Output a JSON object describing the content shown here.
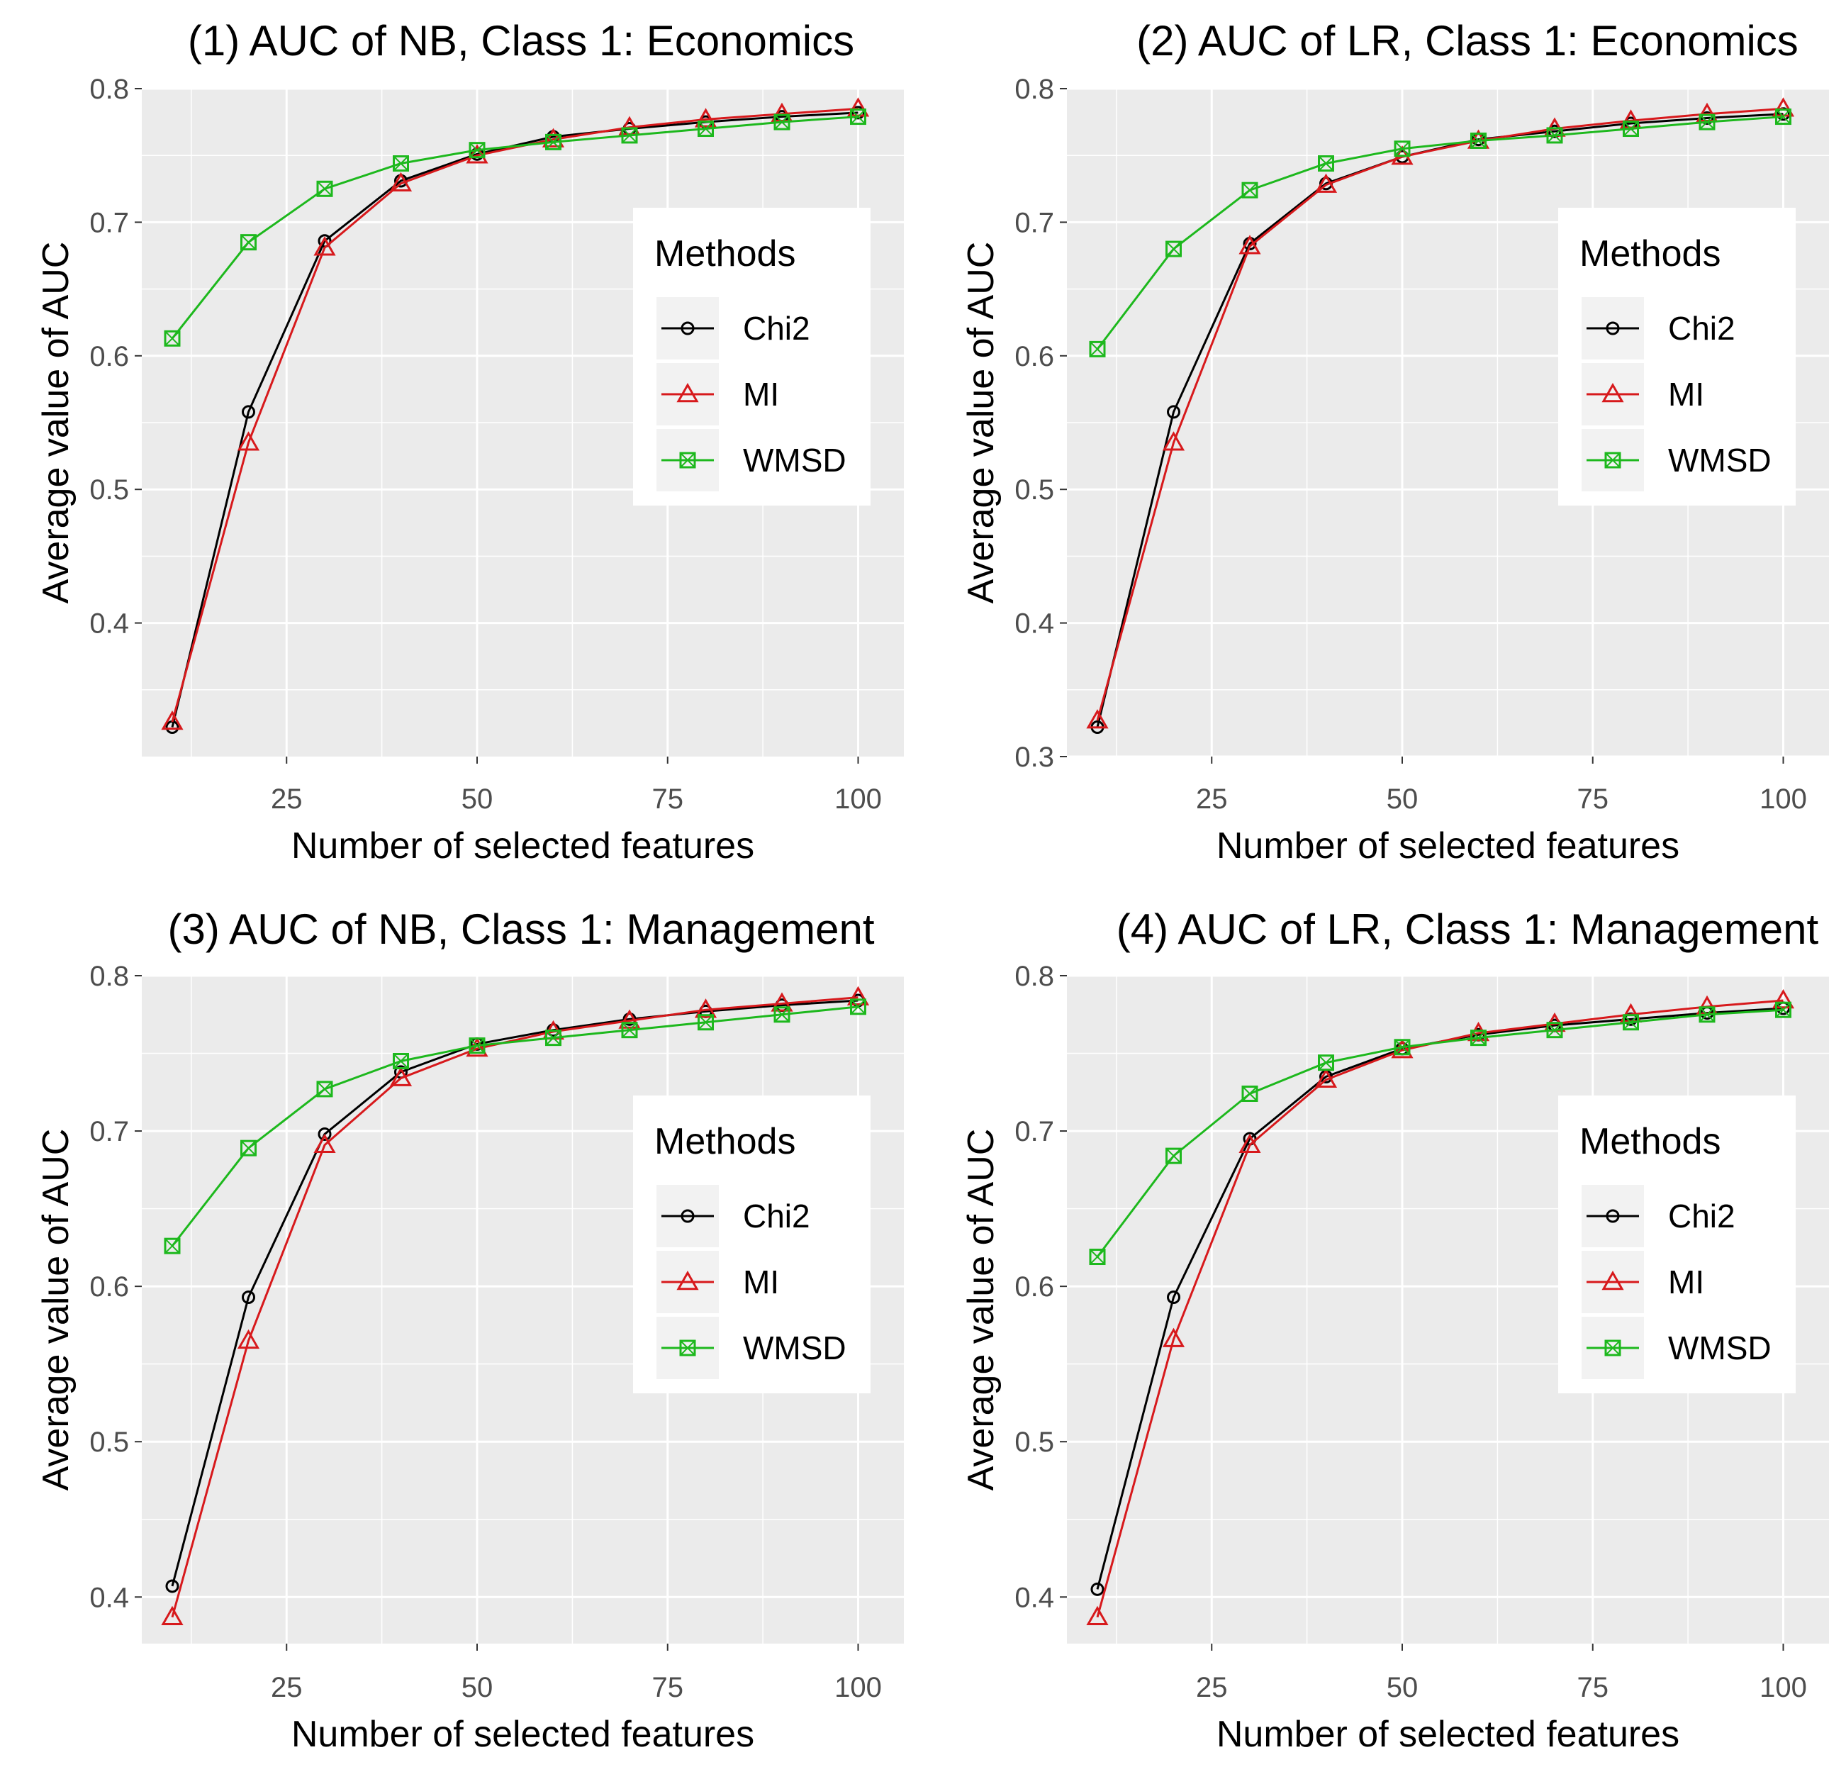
{
  "xlabel_shared": "Number of selected features",
  "ylabel_shared": "Average value of AUC",
  "legend_title": "Methods",
  "colors": {
    "Chi2": "#000000",
    "MI": "#d7191c",
    "WMSD": "#1db81d",
    "panel_bg": "#ebebeb",
    "grid": "#ffffff"
  },
  "chart_data": [
    {
      "type": "line",
      "title": "(1) AUC of NB, Class 1: Economics",
      "xlabel": "Number of selected features",
      "ylabel": "Average value of AUC",
      "x": [
        10,
        20,
        30,
        40,
        50,
        60,
        70,
        80,
        90,
        100
      ],
      "xlim": [
        6,
        106
      ],
      "ylim": [
        0.3,
        0.8
      ],
      "xticks": [
        25,
        50,
        75,
        100
      ],
      "yticks": [
        0.4,
        0.5,
        0.6,
        0.7,
        0.8
      ],
      "ytick_labels": [
        "0.4",
        "0.5",
        "0.6",
        "0.7",
        "0.8"
      ],
      "legend": {
        "title": "Methods",
        "entries": [
          "Chi2",
          "MI",
          "WMSD"
        ],
        "placement": "right"
      },
      "series": [
        {
          "name": "Chi2",
          "marker": "circle",
          "values": [
            0.322,
            0.558,
            0.686,
            0.731,
            0.751,
            0.764,
            0.77,
            0.775,
            0.779,
            0.782
          ]
        },
        {
          "name": "MI",
          "marker": "triangle",
          "values": [
            0.326,
            0.535,
            0.681,
            0.729,
            0.75,
            0.762,
            0.771,
            0.777,
            0.781,
            0.785
          ]
        },
        {
          "name": "WMSD",
          "marker": "square",
          "values": [
            0.613,
            0.685,
            0.725,
            0.744,
            0.754,
            0.76,
            0.765,
            0.77,
            0.775,
            0.779
          ]
        }
      ]
    },
    {
      "type": "line",
      "title": "(2) AUC of LR, Class 1: Economics",
      "xlabel": "Number of selected features",
      "ylabel": "Average value of AUC",
      "x": [
        10,
        20,
        30,
        40,
        50,
        60,
        70,
        80,
        90,
        100
      ],
      "xlim": [
        6,
        106
      ],
      "ylim": [
        0.3,
        0.8
      ],
      "xticks": [
        25,
        50,
        75,
        100
      ],
      "yticks": [
        0.3,
        0.4,
        0.5,
        0.6,
        0.7,
        0.8
      ],
      "ytick_labels": [
        "0.3",
        "0.4",
        "0.5",
        "0.6",
        "0.7",
        "0.8"
      ],
      "legend": {
        "title": "Methods",
        "entries": [
          "Chi2",
          "MI",
          "WMSD"
        ],
        "placement": "right"
      },
      "series": [
        {
          "name": "Chi2",
          "marker": "circle",
          "values": [
            0.322,
            0.558,
            0.684,
            0.729,
            0.749,
            0.762,
            0.768,
            0.774,
            0.778,
            0.781
          ]
        },
        {
          "name": "MI",
          "marker": "triangle",
          "values": [
            0.327,
            0.535,
            0.682,
            0.728,
            0.749,
            0.761,
            0.77,
            0.776,
            0.781,
            0.785
          ]
        },
        {
          "name": "WMSD",
          "marker": "square",
          "values": [
            0.605,
            0.68,
            0.724,
            0.744,
            0.755,
            0.761,
            0.765,
            0.77,
            0.775,
            0.779
          ]
        }
      ]
    },
    {
      "type": "line",
      "title": "(3) AUC of NB, Class 1: Management",
      "xlabel": "Number of selected features",
      "ylabel": "Average value of AUC",
      "x": [
        10,
        20,
        30,
        40,
        50,
        60,
        70,
        80,
        90,
        100
      ],
      "xlim": [
        6,
        106
      ],
      "ylim": [
        0.37,
        0.8
      ],
      "xticks": [
        25,
        50,
        75,
        100
      ],
      "yticks": [
        0.4,
        0.5,
        0.6,
        0.7,
        0.8
      ],
      "ytick_labels": [
        "0.4",
        "0.5",
        "0.6",
        "0.7",
        "0.8"
      ],
      "legend": {
        "title": "Methods",
        "entries": [
          "Chi2",
          "MI",
          "WMSD"
        ],
        "placement": "right"
      },
      "series": [
        {
          "name": "Chi2",
          "marker": "circle",
          "values": [
            0.407,
            0.593,
            0.698,
            0.738,
            0.756,
            0.765,
            0.772,
            0.777,
            0.781,
            0.784
          ]
        },
        {
          "name": "MI",
          "marker": "triangle",
          "values": [
            0.387,
            0.565,
            0.691,
            0.734,
            0.753,
            0.764,
            0.771,
            0.778,
            0.782,
            0.786
          ]
        },
        {
          "name": "WMSD",
          "marker": "square",
          "values": [
            0.626,
            0.689,
            0.727,
            0.745,
            0.755,
            0.76,
            0.765,
            0.77,
            0.775,
            0.78
          ]
        }
      ]
    },
    {
      "type": "line",
      "title": "(4) AUC of LR, Class 1: Management",
      "xlabel": "Number of selected features",
      "ylabel": "Average value of AUC",
      "x": [
        10,
        20,
        30,
        40,
        50,
        60,
        70,
        80,
        90,
        100
      ],
      "xlim": [
        6,
        106
      ],
      "ylim": [
        0.37,
        0.8
      ],
      "xticks": [
        25,
        50,
        75,
        100
      ],
      "yticks": [
        0.4,
        0.5,
        0.6,
        0.7,
        0.8
      ],
      "ytick_labels": [
        "0.4",
        "0.5",
        "0.6",
        "0.7",
        "0.8"
      ],
      "legend": {
        "title": "Methods",
        "entries": [
          "Chi2",
          "MI",
          "WMSD"
        ],
        "placement": "right"
      },
      "series": [
        {
          "name": "Chi2",
          "marker": "circle",
          "values": [
            0.405,
            0.593,
            0.695,
            0.735,
            0.753,
            0.762,
            0.768,
            0.772,
            0.776,
            0.779
          ]
        },
        {
          "name": "MI",
          "marker": "triangle",
          "values": [
            0.387,
            0.566,
            0.691,
            0.733,
            0.752,
            0.763,
            0.769,
            0.775,
            0.78,
            0.784
          ]
        },
        {
          "name": "WMSD",
          "marker": "square",
          "values": [
            0.619,
            0.684,
            0.724,
            0.744,
            0.754,
            0.76,
            0.765,
            0.77,
            0.775,
            0.778
          ]
        }
      ]
    }
  ]
}
